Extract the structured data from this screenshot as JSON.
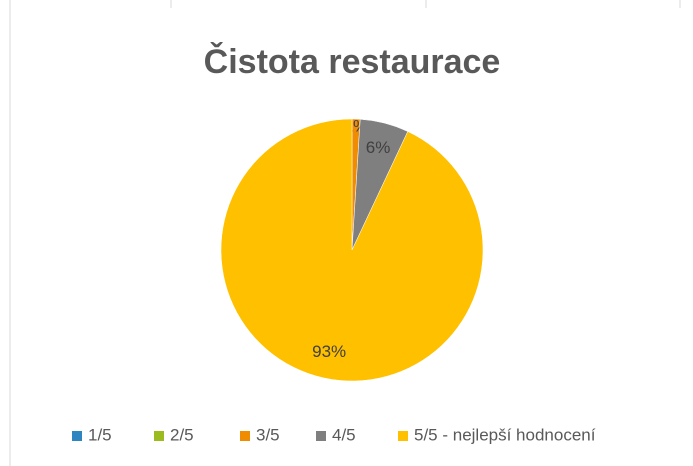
{
  "chart_data": {
    "type": "pie",
    "title": "Čistota restaurace",
    "categories": [
      "1/5",
      "2/5",
      "3/5",
      "4/5",
      "5/5 - nejlepší hodnocení"
    ],
    "values": [
      0,
      0,
      1,
      6,
      93
    ],
    "value_labels": [
      null,
      null,
      "1%",
      "6%",
      "93%"
    ],
    "colors": [
      "#2e86c1",
      "#9bbb1f",
      "#f08c00",
      "#7f7f7f",
      "#ffc000"
    ],
    "legend": "bottom"
  }
}
